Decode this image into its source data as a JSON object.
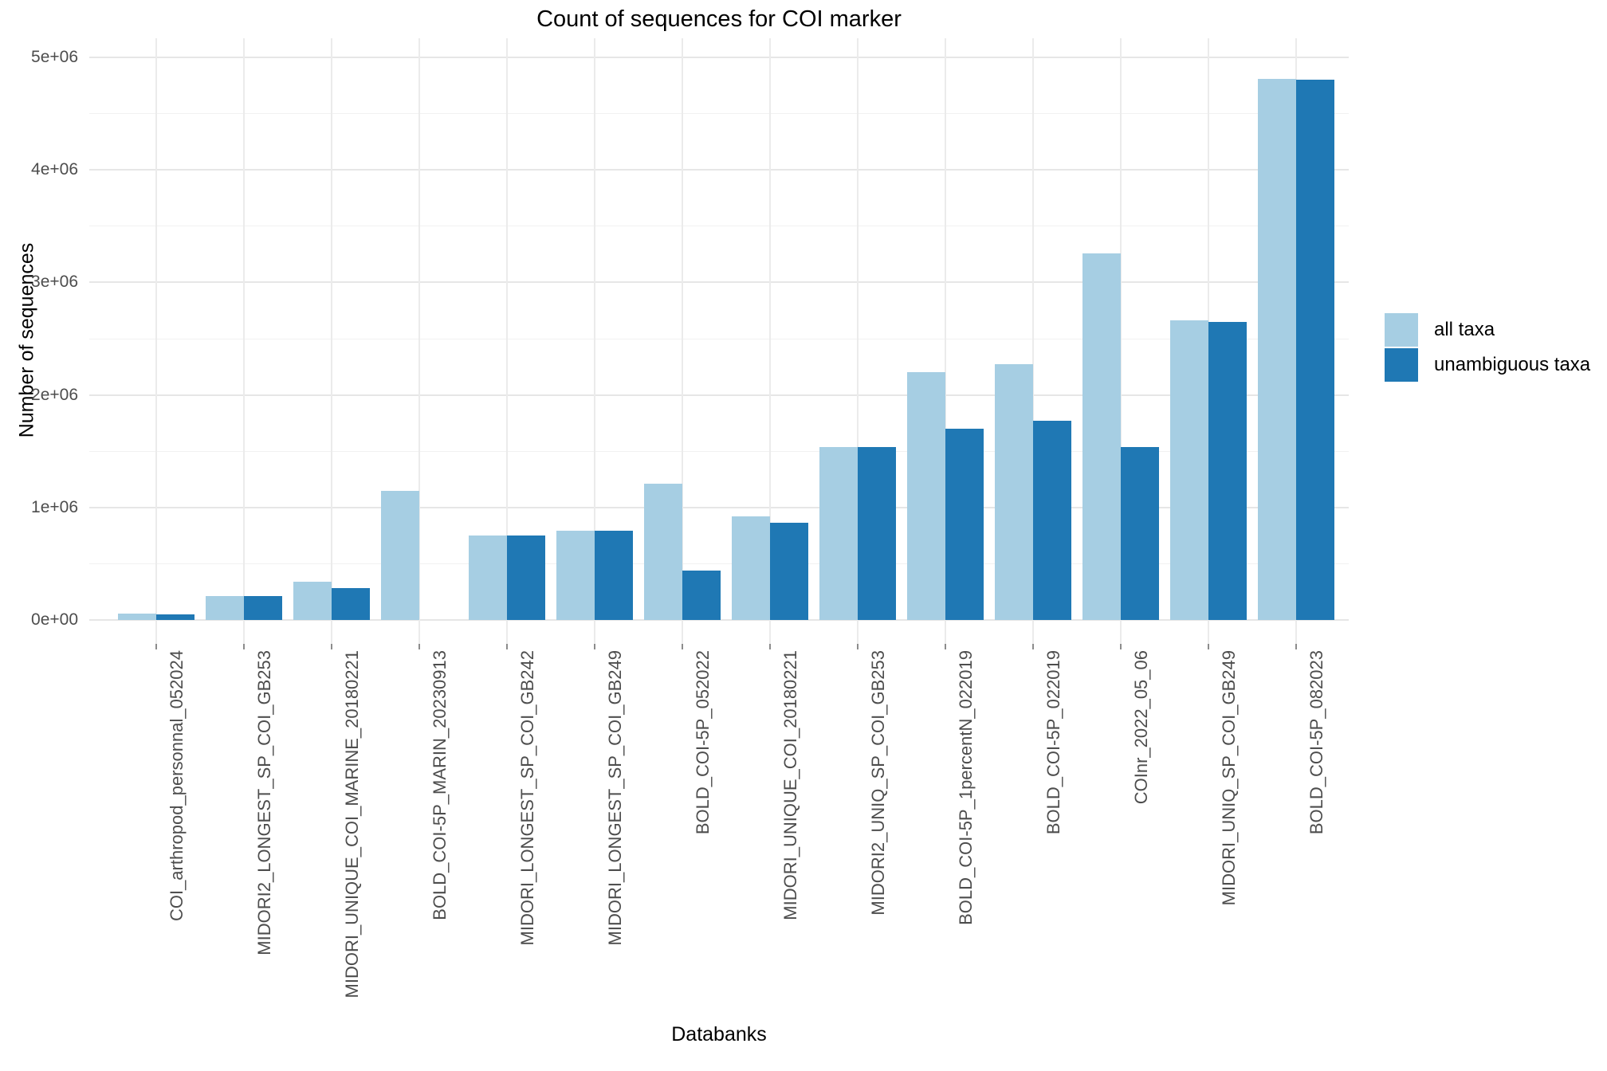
{
  "title": "Count of sequences for COI marker",
  "x_axis_title": "Databanks",
  "y_axis_title": "Number of sequences",
  "legend": {
    "position": "right",
    "items": [
      {
        "label": "all taxa",
        "color": "#a6cee3"
      },
      {
        "label": "unambiguous taxa",
        "color": "#1f78b4"
      }
    ]
  },
  "colors": {
    "all_taxa": "#a6cee3",
    "unambiguous_taxa": "#1f78b4",
    "grid_major": "#e6e6e6",
    "grid_minor": "#f1f1f1",
    "tick_text": "#4d4d4d",
    "background": "#ffffff"
  },
  "chart_data": {
    "type": "bar",
    "title": "Count of sequences for COI marker",
    "xlabel": "Databanks",
    "ylabel": "Number of sequences",
    "ylim": [
      0,
      5000000
    ],
    "grid": "on",
    "legend_position": "right",
    "y_tick_labels": [
      "0e+00",
      "1e+06",
      "2e+06",
      "3e+06",
      "4e+06",
      "5e+06"
    ],
    "x_tick_angle": 90,
    "categories": [
      "COI_arthropod_personnal_052024",
      "MIDORI2_LONGEST_SP_COI_GB253",
      "MIDORI_UNIQUE_COI_MARINE_20180221",
      "BOLD_COI-5P_MARIN_20230913",
      "MIDORI_LONGEST_SP_COI_GB242",
      "MIDORI_LONGEST_SP_COI_GB249",
      "BOLD_COI-5P_052022",
      "MIDORI_UNIQUE_COI_20180221",
      "MIDORI2_UNIQ_SP_COI_GB253",
      "BOLD_COI-5P_1percentN_022019",
      "BOLD_COI-5P_022019",
      "COInr_2022_05_06",
      "MIDORI_UNIQ_SP_COI_GB249",
      "BOLD_COI-5P_082023"
    ],
    "series": [
      {
        "name": "all taxa",
        "color": "#a6cee3",
        "values": [
          60000,
          210000,
          340000,
          1150000,
          750000,
          790000,
          1210000,
          920000,
          1540000,
          2200000,
          2270000,
          3260000,
          2660000,
          4810000
        ]
      },
      {
        "name": "unambiguous taxa",
        "color": "#1f78b4",
        "values": [
          47000,
          210000,
          285000,
          0,
          750000,
          790000,
          440000,
          865000,
          1540000,
          1700000,
          1770000,
          1540000,
          2650000,
          4800000
        ]
      }
    ]
  }
}
